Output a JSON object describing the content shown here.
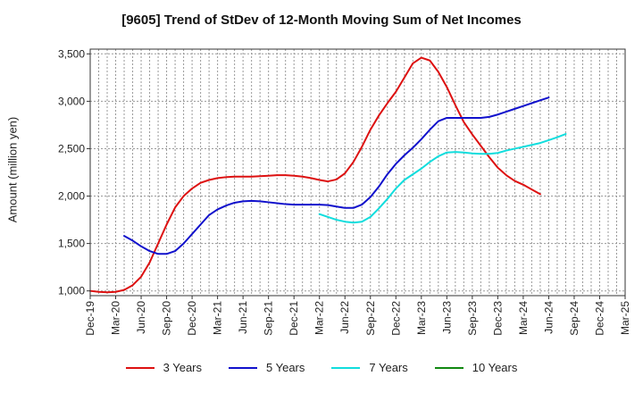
{
  "chart_data": {
    "type": "line",
    "title": "[9605]  Trend of StDev of 12-Month Moving Sum of Net Incomes",
    "xlabel": "",
    "ylabel": "Amount (million yen)",
    "ylim": [
      950,
      3550
    ],
    "yticks": [
      1000,
      1500,
      2000,
      2500,
      3000,
      3500
    ],
    "ytick_labels": [
      "1,000",
      "1,500",
      "2,000",
      "2,500",
      "3,000",
      "3,500"
    ],
    "x_tick_labels": [
      "Dec-19",
      "Mar-20",
      "Jun-20",
      "Sep-20",
      "Dec-20",
      "Mar-21",
      "Jun-21",
      "Sep-21",
      "Dec-21",
      "Mar-22",
      "Jun-22",
      "Sep-22",
      "Dec-22",
      "Mar-23",
      "Jun-23",
      "Sep-23",
      "Dec-23",
      "Mar-24",
      "Jun-24",
      "Sep-24",
      "Dec-24",
      "Mar-25"
    ],
    "grid": true,
    "legend_position": "bottom",
    "series": [
      {
        "name": "3 Years",
        "color": "#dd1111",
        "start_index": 0,
        "values": [
          1000,
          990,
          985,
          990,
          1010,
          1060,
          1150,
          1300,
          1500,
          1700,
          1880,
          2000,
          2080,
          2140,
          2170,
          2190,
          2200,
          2205,
          2205,
          2205,
          2210,
          2215,
          2220,
          2220,
          2215,
          2205,
          2190,
          2170,
          2155,
          2175,
          2240,
          2360,
          2520,
          2700,
          2850,
          2980,
          3100,
          3250,
          3400,
          3460,
          3430,
          3310,
          3150,
          2960,
          2780,
          2650,
          2530,
          2410,
          2300,
          2220,
          2160,
          2120,
          2070,
          2020
        ]
      },
      {
        "name": "5 Years",
        "color": "#1111cc",
        "start_index": 4,
        "values": [
          1580,
          1530,
          1470,
          1420,
          1390,
          1390,
          1420,
          1500,
          1600,
          1700,
          1800,
          1860,
          1900,
          1930,
          1945,
          1950,
          1945,
          1935,
          1925,
          1915,
          1910,
          1910,
          1910,
          1910,
          1905,
          1890,
          1875,
          1875,
          1910,
          1990,
          2100,
          2230,
          2340,
          2430,
          2510,
          2600,
          2700,
          2790,
          2825,
          2825,
          2825,
          2825,
          2825,
          2835,
          2860,
          2890,
          2920,
          2950,
          2980,
          3010,
          3040
        ]
      },
      {
        "name": "7 Years",
        "color": "#11dddd",
        "start_index": 27,
        "values": [
          1810,
          1780,
          1750,
          1730,
          1720,
          1730,
          1780,
          1870,
          1970,
          2080,
          2170,
          2230,
          2290,
          2360,
          2420,
          2460,
          2465,
          2460,
          2450,
          2445,
          2445,
          2455,
          2480,
          2500,
          2520,
          2540,
          2560,
          2590,
          2620,
          2655
        ]
      },
      {
        "name": "10 Years",
        "color": "#118811",
        "start_index": 0,
        "values": []
      }
    ]
  }
}
